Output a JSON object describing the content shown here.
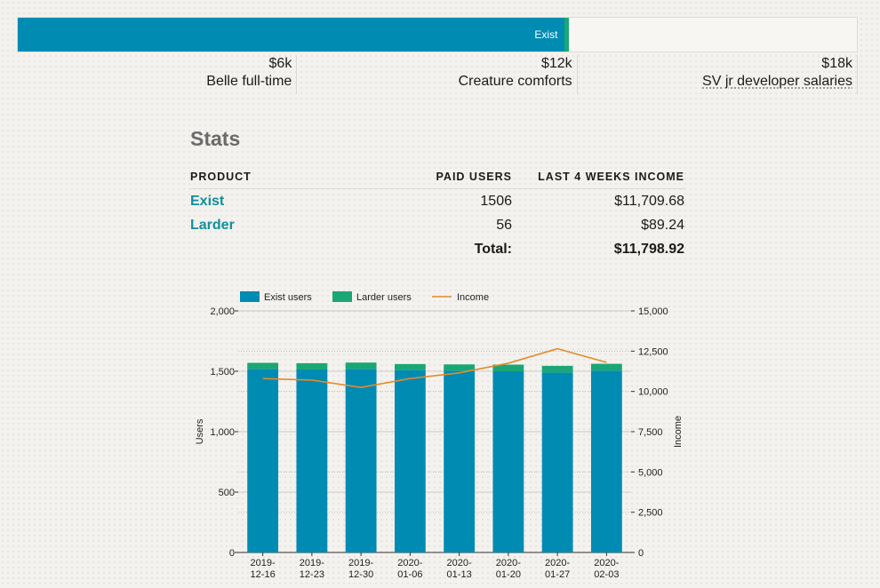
{
  "progress": {
    "label": "Exist",
    "max_value": 18000,
    "exist_value": 11709.68,
    "larder_value": 89.24,
    "colors": {
      "exist": "#008bb2",
      "larder": "#1aa775",
      "track": "#f7f6f3"
    },
    "milestones": [
      {
        "amount": "$6k",
        "label": "Belle full-time",
        "value": 6000
      },
      {
        "amount": "$12k",
        "label": "Creature comforts",
        "value": 12000
      },
      {
        "amount": "$18k",
        "label": "SV jr developer salaries",
        "value": 18000
      }
    ]
  },
  "stats": {
    "title": "Stats",
    "headers": {
      "product": "PRODUCT",
      "paid_users": "PAID USERS",
      "income": "LAST 4 WEEKS INCOME"
    },
    "rows": [
      {
        "product": "Exist",
        "paid_users": "1506",
        "income": "$11,709.68"
      },
      {
        "product": "Larder",
        "paid_users": "56",
        "income": "$89.24"
      }
    ],
    "total_label": "Total:",
    "total_value": "$11,798.92",
    "link_color": "#0f8f9c"
  },
  "chart_data": {
    "type": "bar",
    "stacked": true,
    "categories": [
      "2019-12-16",
      "2019-12-23",
      "2019-12-30",
      "2020-01-06",
      "2020-01-13",
      "2020-01-20",
      "2020-01-27",
      "2020-02-03"
    ],
    "category_lines": [
      [
        "2019-",
        "12-16"
      ],
      [
        "2019-",
        "12-23"
      ],
      [
        "2019-",
        "12-30"
      ],
      [
        "2020-",
        "01-06"
      ],
      [
        "2020-",
        "01-13"
      ],
      [
        "2020-",
        "01-20"
      ],
      [
        "2020-",
        "01-27"
      ],
      [
        "2020-",
        "02-03"
      ]
    ],
    "series": [
      {
        "name": "Exist users",
        "type": "bar",
        "axis": "left",
        "color": "#008bb2",
        "values": [
          1520,
          1515,
          1520,
          1510,
          1505,
          1500,
          1490,
          1506
        ]
      },
      {
        "name": "Larder users",
        "type": "bar",
        "axis": "left",
        "color": "#1aa775",
        "values": [
          50,
          52,
          52,
          50,
          52,
          55,
          55,
          56
        ]
      },
      {
        "name": "Income",
        "type": "line",
        "axis": "right",
        "color": "#e58a2a",
        "values": [
          10800,
          10700,
          10250,
          10800,
          11150,
          11750,
          12650,
          11800
        ]
      }
    ],
    "ylabel": "Users",
    "y2label": "Income",
    "ylim": [
      0,
      2000
    ],
    "y2lim": [
      0,
      15000
    ],
    "yticks": [
      0,
      500,
      1000,
      1500,
      2000
    ],
    "ytick_labels": [
      "0",
      "500",
      "1,000",
      "1,500",
      "2,000"
    ],
    "y2ticks": [
      0,
      2500,
      5000,
      7500,
      10000,
      12500,
      15000
    ],
    "y2tick_labels": [
      "0",
      "2,500",
      "5,000",
      "7,500",
      "10,000",
      "12,500",
      "15,000"
    ],
    "legend": "top-left",
    "grid": true
  }
}
